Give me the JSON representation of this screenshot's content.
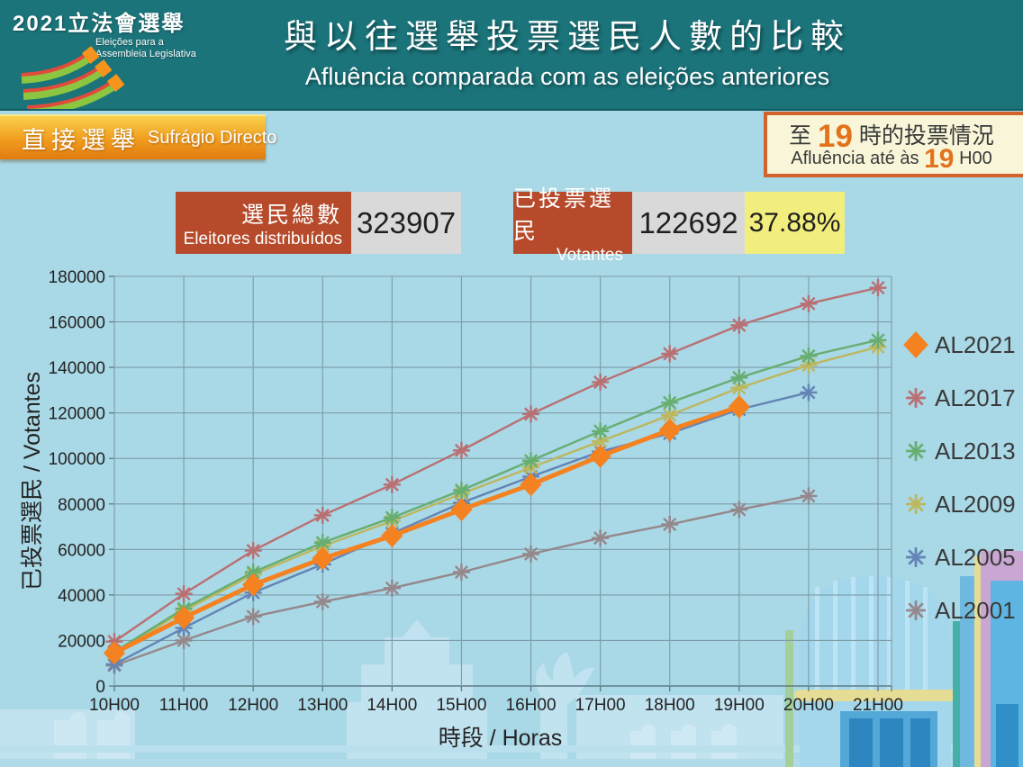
{
  "header": {
    "logo": {
      "title": "2021立法會選舉",
      "subtitle1": "Eleições para a",
      "subtitle2": "Assembleia Legislativa"
    },
    "title_zh": "與以往選舉投票選民人數的比較",
    "title_pt": "Afluência comparada com as eleições anteriores"
  },
  "badge": {
    "zh": "直接選舉",
    "pt": "Sufrágio Directo"
  },
  "status_box": {
    "zh_prefix": "至",
    "hour": "19",
    "zh_suffix": "時的投票情況",
    "pt_prefix": "Afluência até às",
    "pt_suffix": "H00"
  },
  "stats": {
    "registered": {
      "label_zh": "選民總數",
      "label_pt": "Eleitores distribuídos",
      "value": "323907"
    },
    "voted": {
      "label_zh": "已投票選民",
      "label_pt": "Votantes",
      "value": "122692",
      "percent": "37.88%"
    }
  },
  "chart_data": {
    "type": "line",
    "title": "",
    "xlabel": "時段 / Horas",
    "ylabel": "已投票選民 / Votantes",
    "x_categories": [
      "10H00",
      "11H00",
      "12H00",
      "13H00",
      "14H00",
      "15H00",
      "16H00",
      "17H00",
      "18H00",
      "19H00",
      "20H00",
      "21H00"
    ],
    "ylim": [
      0,
      180000
    ],
    "ytick_step": 20000,
    "grid": true,
    "legend_position": "right",
    "series": [
      {
        "name": "AL2021",
        "color": "#F58220",
        "marker": "diamond",
        "values": [
          14500,
          30000,
          44500,
          56000,
          66000,
          77500,
          88500,
          101000,
          112500,
          122692
        ]
      },
      {
        "name": "AL2017",
        "color": "#B97073",
        "marker": "asterisk",
        "values": [
          19500,
          40500,
          59500,
          75000,
          88500,
          103500,
          119500,
          133500,
          146000,
          158500,
          168000,
          175000
        ]
      },
      {
        "name": "AL2013",
        "color": "#67AE71",
        "marker": "asterisk",
        "values": [
          15000,
          34000,
          50000,
          63000,
          74000,
          86000,
          99000,
          112000,
          124500,
          135500,
          145000,
          152000
        ]
      },
      {
        "name": "AL2009",
        "color": "#BDB75E",
        "marker": "asterisk",
        "values": [
          14500,
          33000,
          49000,
          61500,
          72500,
          84500,
          96000,
          107500,
          119000,
          131000,
          141000,
          149000
        ]
      },
      {
        "name": "AL2005",
        "color": "#6484B6",
        "marker": "asterisk",
        "values": [
          9500,
          25500,
          41000,
          53500,
          67000,
          80500,
          92000,
          103000,
          111000,
          121500,
          129000
        ]
      },
      {
        "name": "AL2001",
        "color": "#95888B",
        "marker": "asterisk",
        "values": [
          9000,
          20000,
          30500,
          37000,
          43000,
          50000,
          58000,
          65000,
          71000,
          77500,
          83500
        ]
      }
    ]
  }
}
